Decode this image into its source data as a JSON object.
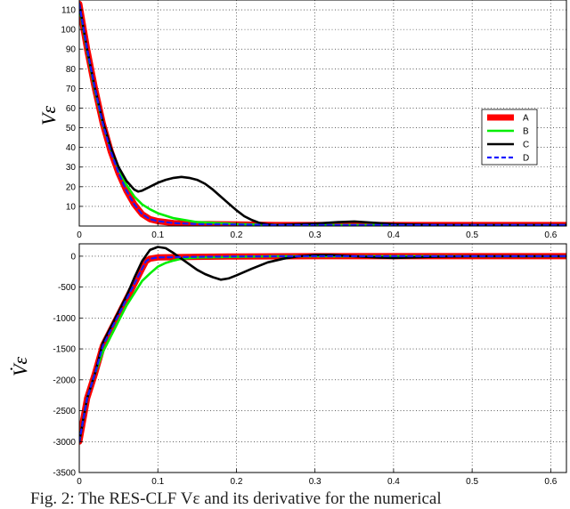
{
  "caption": "Fig. 2: The RES-CLF Vε and its derivative for the numerical",
  "cut_text": [
    "e",
    "e",
    "p"
  ],
  "chart_data": [
    {
      "type": "line",
      "ylabel": "Vε",
      "xlim": [
        0,
        0.62
      ],
      "ylim": [
        0,
        115
      ],
      "xticks": [
        0,
        0.1,
        0.2,
        0.3,
        0.4,
        0.5,
        0.6
      ],
      "yticks": [
        10,
        20,
        30,
        40,
        50,
        60,
        70,
        80,
        90,
        100,
        110
      ],
      "grid": true,
      "legend": {
        "position": "right",
        "entries": [
          "A",
          "B",
          "C",
          "D"
        ]
      },
      "series": [
        {
          "name": "A",
          "color": "#ff0000",
          "style": "solid-thick",
          "x": [
            0,
            0.01,
            0.02,
            0.03,
            0.04,
            0.05,
            0.06,
            0.07,
            0.08,
            0.09,
            0.1,
            0.12,
            0.15,
            0.2,
            0.25,
            0.3,
            0.4,
            0.5,
            0.62
          ],
          "y": [
            113,
            90,
            70,
            52,
            38,
            27,
            18,
            11,
            6,
            3.5,
            2.5,
            1.5,
            1,
            0.8,
            0.5,
            0.5,
            0.5,
            0.5,
            0.5
          ]
        },
        {
          "name": "B",
          "color": "#00ee00",
          "style": "solid",
          "x": [
            0,
            0.01,
            0.02,
            0.03,
            0.04,
            0.05,
            0.06,
            0.07,
            0.08,
            0.09,
            0.1,
            0.12,
            0.15,
            0.2,
            0.25,
            0.3,
            0.4,
            0.5,
            0.62
          ],
          "y": [
            112,
            89,
            69,
            52,
            39,
            29,
            21,
            15,
            11,
            8.5,
            6.5,
            4,
            2,
            1,
            0.6,
            0.5,
            0.5,
            0.5,
            0.5
          ]
        },
        {
          "name": "C",
          "color": "#000000",
          "style": "solid",
          "x": [
            0,
            0.01,
            0.02,
            0.03,
            0.04,
            0.05,
            0.06,
            0.07,
            0.075,
            0.08,
            0.09,
            0.1,
            0.11,
            0.12,
            0.13,
            0.14,
            0.15,
            0.16,
            0.17,
            0.18,
            0.19,
            0.2,
            0.21,
            0.22,
            0.23,
            0.24,
            0.25,
            0.27,
            0.3,
            0.33,
            0.35,
            0.37,
            0.4,
            0.45,
            0.5,
            0.62
          ],
          "y": [
            113,
            90,
            70,
            53,
            40,
            30,
            23,
            18.5,
            17.5,
            18,
            20,
            22,
            23.5,
            24.5,
            25,
            24.5,
            23.5,
            21.5,
            18.5,
            15,
            11.5,
            8,
            5,
            3,
            1.5,
            0.8,
            0.5,
            0.8,
            1.2,
            2,
            2.3,
            1.8,
            1,
            0.6,
            0.5,
            0.5
          ]
        },
        {
          "name": "D",
          "color": "#1a1aff",
          "style": "dashed",
          "x": [
            0,
            0.01,
            0.02,
            0.03,
            0.04,
            0.05,
            0.06,
            0.07,
            0.08,
            0.09,
            0.1,
            0.12,
            0.15,
            0.2,
            0.25,
            0.3,
            0.4,
            0.5,
            0.62
          ],
          "y": [
            113,
            90,
            70,
            52,
            38,
            27,
            18,
            11,
            6,
            3.5,
            2.5,
            1.5,
            1,
            0.8,
            0.5,
            0.5,
            0.5,
            0.5,
            0.5
          ]
        }
      ]
    },
    {
      "type": "line",
      "ylabel": "V̇ε",
      "xlim": [
        0,
        0.62
      ],
      "ylim": [
        -3500,
        200
      ],
      "xticks": [
        0,
        0.1,
        0.2,
        0.3,
        0.4,
        0.5,
        0.6
      ],
      "yticks": [
        0,
        -500,
        -1000,
        -1500,
        -2000,
        -2500,
        -3000,
        -3500
      ],
      "grid": true,
      "series": [
        {
          "name": "A",
          "color": "#ff0000",
          "style": "solid-thick",
          "x": [
            0,
            0.01,
            0.02,
            0.03,
            0.04,
            0.05,
            0.06,
            0.07,
            0.08,
            0.085,
            0.09,
            0.1,
            0.15,
            0.2,
            0.3,
            0.4,
            0.5,
            0.62
          ],
          "y": [
            -3000,
            -2300,
            -1900,
            -1450,
            -1200,
            -950,
            -700,
            -450,
            -200,
            -80,
            -40,
            -20,
            -10,
            -5,
            0,
            0,
            0,
            0
          ]
        },
        {
          "name": "B",
          "color": "#00ee00",
          "style": "solid",
          "x": [
            0,
            0.01,
            0.02,
            0.03,
            0.04,
            0.05,
            0.06,
            0.07,
            0.08,
            0.09,
            0.1,
            0.11,
            0.12,
            0.13,
            0.15,
            0.2,
            0.25,
            0.3,
            0.4,
            0.5,
            0.62
          ],
          "y": [
            -3000,
            -2300,
            -1900,
            -1550,
            -1300,
            -1050,
            -800,
            -600,
            -400,
            -280,
            -170,
            -110,
            -70,
            -40,
            -20,
            -10,
            0,
            0,
            0,
            0,
            0
          ]
        },
        {
          "name": "C",
          "color": "#000000",
          "style": "solid",
          "x": [
            0,
            0.01,
            0.02,
            0.03,
            0.04,
            0.05,
            0.06,
            0.07,
            0.08,
            0.09,
            0.1,
            0.11,
            0.12,
            0.13,
            0.14,
            0.15,
            0.16,
            0.17,
            0.18,
            0.19,
            0.2,
            0.22,
            0.24,
            0.26,
            0.28,
            0.3,
            0.32,
            0.35,
            0.38,
            0.4,
            0.45,
            0.5,
            0.62
          ],
          "y": [
            -3000,
            -2300,
            -1900,
            -1400,
            -1150,
            -900,
            -650,
            -350,
            -80,
            100,
            150,
            130,
            50,
            -40,
            -130,
            -220,
            -290,
            -340,
            -380,
            -360,
            -310,
            -200,
            -100,
            -40,
            0,
            20,
            20,
            0,
            -20,
            -30,
            -10,
            0,
            0
          ]
        },
        {
          "name": "D",
          "color": "#1a1aff",
          "style": "dashed",
          "x": [
            0,
            0.01,
            0.02,
            0.03,
            0.04,
            0.05,
            0.06,
            0.07,
            0.08,
            0.085,
            0.09,
            0.1,
            0.15,
            0.2,
            0.3,
            0.4,
            0.5,
            0.62
          ],
          "y": [
            -3000,
            -2300,
            -1900,
            -1450,
            -1200,
            -950,
            -700,
            -450,
            -200,
            -80,
            -40,
            -20,
            -10,
            -5,
            0,
            0,
            0,
            0
          ]
        }
      ]
    }
  ]
}
